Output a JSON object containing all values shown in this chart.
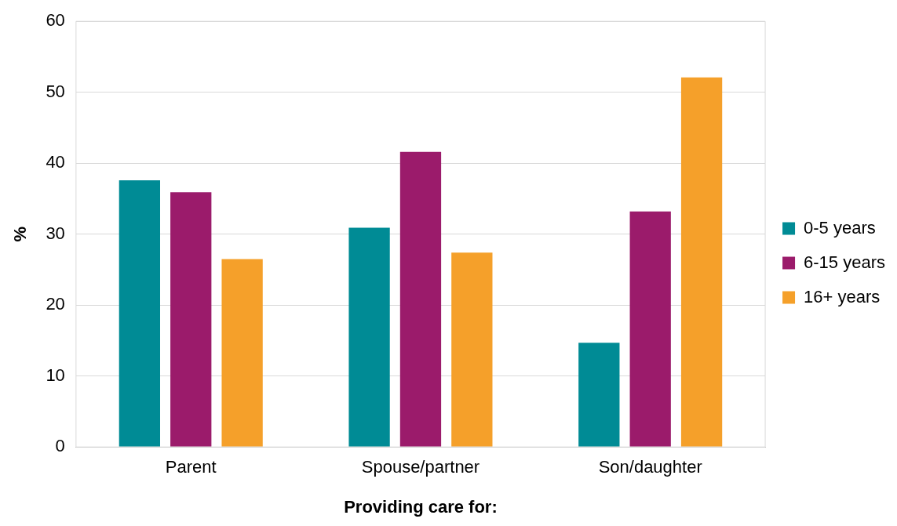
{
  "chart_data": {
    "type": "bar",
    "xlabel": "Providing care for:",
    "ylabel": "%",
    "categories": [
      "Parent",
      "Spouse/partner",
      "Son/daughter"
    ],
    "series": [
      {
        "name": "0-5 years",
        "color": "#008b95",
        "values": [
          37.6,
          30.9,
          14.7
        ]
      },
      {
        "name": "6-15 years",
        "color": "#9b1b6b",
        "values": [
          35.9,
          41.6,
          33.2
        ]
      },
      {
        "name": "16+ years",
        "color": "#f5a02a",
        "values": [
          26.5,
          27.4,
          52.1
        ]
      }
    ],
    "ylim": [
      0,
      60
    ],
    "yticks": [
      0,
      10,
      20,
      30,
      40,
      50,
      60
    ],
    "grid": "y",
    "legend": "right"
  }
}
